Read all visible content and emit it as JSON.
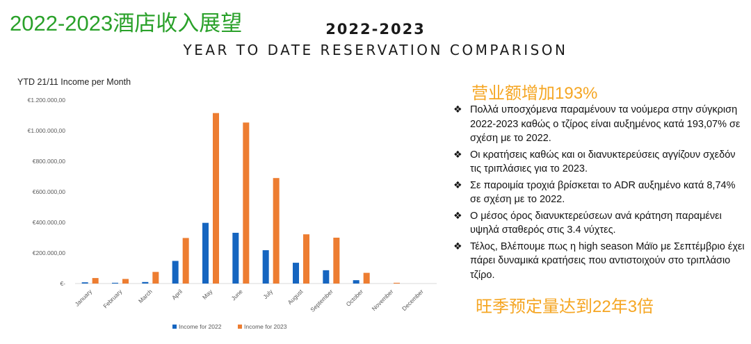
{
  "slide_title": "2022-2023酒店收入展望",
  "header": {
    "line1": "2022-2023",
    "line2": "YEAR TO DATE RESERVATION COMPARISON"
  },
  "chart_data": {
    "type": "bar",
    "title": "YTD 21/11 Income per Month",
    "categories": [
      "January",
      "February",
      "March",
      "April",
      "May",
      "June",
      "July",
      "August",
      "September",
      "October",
      "November",
      "December"
    ],
    "series": [
      {
        "name": "Income for 2022",
        "color": "#1565c0",
        "values": [
          8000,
          5000,
          10000,
          148000,
          397000,
          332000,
          218000,
          136000,
          87000,
          22000,
          0,
          0
        ]
      },
      {
        "name": "Income for 2023",
        "color": "#ed7d31",
        "values": [
          36000,
          30000,
          76000,
          298000,
          1115000,
          1053000,
          690000,
          322000,
          300000,
          70000,
          5000,
          0
        ]
      }
    ],
    "ylim": [
      0,
      1200000
    ],
    "yticks": [
      0,
      200000,
      400000,
      600000,
      800000,
      1000000,
      1200000
    ],
    "ytick_labels": [
      "€-",
      "€200.000,00",
      "€400.000,00",
      "€600.000,00",
      "€800.000,00",
      "€1.000.000,00",
      "€1.200.000,00"
    ],
    "grid": false,
    "legend_position": "bottom"
  },
  "highlight_top": "营业额增加193%",
  "highlight_bottom": "旺季预定量达到22年3倍",
  "bullet_icon": "diamond-bullet-icon",
  "bullet_glyph": "❖",
  "bullets": [
    "Πολλά υποσχόμενα παραμένουν  τα νούμερα στην σύγκριση 2022-2023 καθώς ο τζίρος είναι αυξημένος κατά 193,07% σε σχέση με το 2022.",
    "Οι κρατήσεις καθώς και οι διανυκτερεύσεις αγγίζουν σχεδόν τις τριπλάσιες για το 2023.",
    " Σε παροιμία τροχιά βρίσκεται το ADR  αυξημένο κατά 8,74% σε σχέση με το 2022.",
    "Ο μέσος όρος διανυκτερεύσεων ανά κράτηση παραμένει υψηλά σταθερός στις 3.4  νύχτες.",
    "Τέλος, Βλέπουμε πως η high season Μάϊο με Σεπτέμβριο έχει πάρει δυναμικά κρατήσεις που αντιστοιχούν στο τριπλάσιο τζίρο."
  ]
}
